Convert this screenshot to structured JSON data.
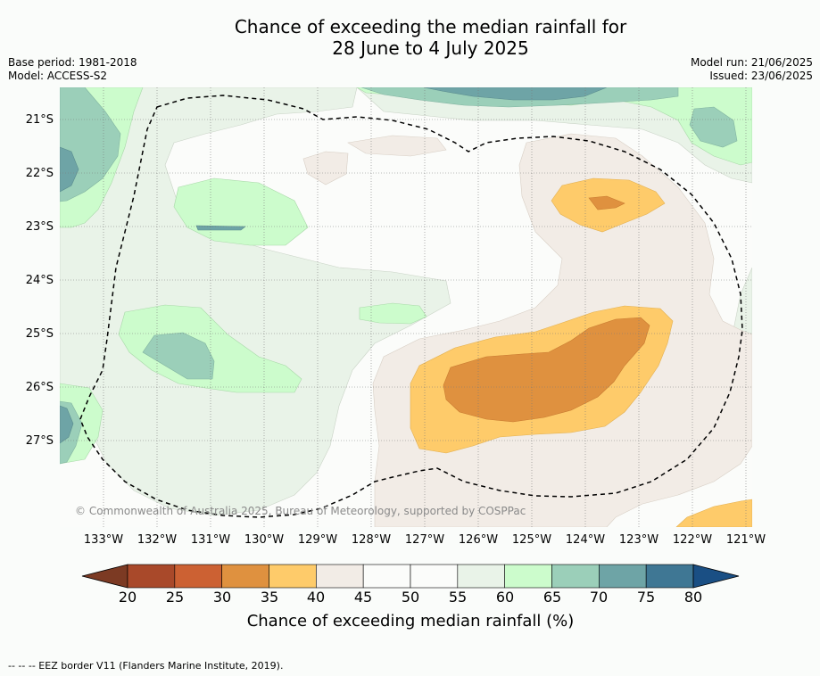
{
  "title": {
    "line1": "Chance of exceeding the median rainfall for",
    "line2": "28 June to 4 July 2025"
  },
  "meta": {
    "base_period": "Base period: 1981-2018",
    "model": "Model: ACCESS-S2",
    "model_run": "Model run: 21/06/2025",
    "issued": "Issued: 23/06/2025"
  },
  "map": {
    "lat_labels": [
      "21°S",
      "22°S",
      "23°S",
      "24°S",
      "25°S",
      "26°S",
      "27°S"
    ],
    "lon_labels": [
      "133°W",
      "132°W",
      "131°W",
      "130°W",
      "129°W",
      "128°W",
      "127°W",
      "126°W",
      "125°W",
      "124°W",
      "123°W",
      "122°W",
      "121°W"
    ],
    "copyright": "© Commonwealth of Australia 2025, Bureau of Meteorology, supported by COSPPac",
    "fill_colors": {
      "p25_30": "#c8653a",
      "p30_35": "#df913f",
      "p35_40": "#fecb6a",
      "p40_45": "#f2ece6",
      "p45_55": "#fbfcfa",
      "p55_60": "#e9f3e8",
      "p60_65": "#ccfccc",
      "p65_70": "#9bcfb9",
      "p70_75": "#6ea4a6"
    }
  },
  "colorbar": {
    "label": "Chance of exceeding median rainfall (%)",
    "ticks": [
      "20",
      "25",
      "30",
      "35",
      "40",
      "45",
      "50",
      "55",
      "60",
      "65",
      "70",
      "75",
      "80"
    ],
    "colors": [
      "#a9492a",
      "#cc6133",
      "#df913f",
      "#fecb6a",
      "#f2ece6",
      "#fbfcfa",
      "#fbfcfa",
      "#e9f3e8",
      "#ccfccc",
      "#9bcfb9",
      "#6ea4a6",
      "#3f7794"
    ],
    "under_color": "#7c3a23",
    "over_color": "#1a4f84"
  },
  "footer": {
    "legend_text": "--  --  -- EEZ border V11 (Flanders Marine Institute, 2019)."
  }
}
